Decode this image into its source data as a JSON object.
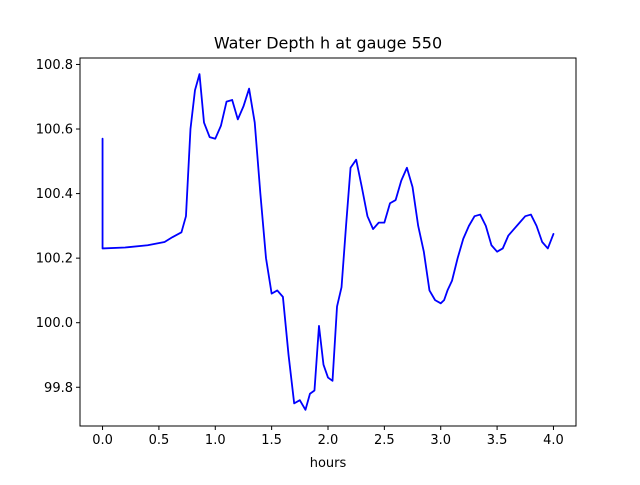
{
  "chart_data": {
    "type": "line",
    "title": "Water Depth h at gauge 550",
    "xlabel": "hours",
    "ylabel": "",
    "xlim": [
      -0.2,
      4.2
    ],
    "ylim": [
      99.68,
      100.82
    ],
    "grid": false,
    "line_color": "#0000ff",
    "x_ticks": [
      0.0,
      0.5,
      1.0,
      1.5,
      2.0,
      2.5,
      3.0,
      3.5,
      4.0
    ],
    "x_tick_labels": [
      "0.0",
      "0.5",
      "1.0",
      "1.5",
      "2.0",
      "2.5",
      "3.0",
      "3.5",
      "4.0"
    ],
    "y_ticks": [
      99.8,
      100.0,
      100.2,
      100.4,
      100.6,
      100.8
    ],
    "y_tick_labels": [
      "99.8",
      "100.0",
      "100.2",
      "100.4",
      "100.6",
      "100.8"
    ],
    "series": [
      {
        "x": [
          0.0,
          0.0,
          0.2,
          0.4,
          0.55,
          0.62,
          0.7,
          0.74,
          0.78,
          0.82,
          0.86,
          0.9,
          0.95,
          1.0,
          1.05,
          1.1,
          1.15,
          1.2,
          1.25,
          1.3,
          1.35,
          1.4,
          1.45,
          1.5,
          1.55,
          1.6,
          1.65,
          1.7,
          1.75,
          1.8,
          1.84,
          1.88,
          1.92,
          1.96,
          2.0,
          2.04,
          2.08,
          2.12,
          2.16,
          2.2,
          2.25,
          2.3,
          2.35,
          2.4,
          2.45,
          2.5,
          2.55,
          2.6,
          2.65,
          2.7,
          2.75,
          2.8,
          2.85,
          2.9,
          2.95,
          3.0,
          3.03,
          3.06,
          3.1,
          3.15,
          3.2,
          3.25,
          3.3,
          3.35,
          3.4,
          3.45,
          3.5,
          3.55,
          3.6,
          3.65,
          3.7,
          3.75,
          3.8,
          3.85,
          3.9,
          3.95,
          4.0
        ],
        "y": [
          100.57,
          100.23,
          100.233,
          100.24,
          100.25,
          100.265,
          100.28,
          100.33,
          100.6,
          100.72,
          100.77,
          100.62,
          100.575,
          100.57,
          100.61,
          100.685,
          100.69,
          100.63,
          100.67,
          100.725,
          100.62,
          100.4,
          100.2,
          100.09,
          100.1,
          100.08,
          99.9,
          99.75,
          99.76,
          99.73,
          99.78,
          99.79,
          99.99,
          99.87,
          99.83,
          99.82,
          100.05,
          100.11,
          100.3,
          100.48,
          100.505,
          100.42,
          100.33,
          100.29,
          100.31,
          100.31,
          100.37,
          100.38,
          100.44,
          100.48,
          100.42,
          100.3,
          100.22,
          100.1,
          100.07,
          100.06,
          100.07,
          100.1,
          100.13,
          100.2,
          100.26,
          100.3,
          100.33,
          100.335,
          100.3,
          100.24,
          100.22,
          100.23,
          100.27,
          100.29,
          100.31,
          100.33,
          100.335,
          100.3,
          100.25,
          100.23,
          100.275
        ]
      }
    ]
  }
}
